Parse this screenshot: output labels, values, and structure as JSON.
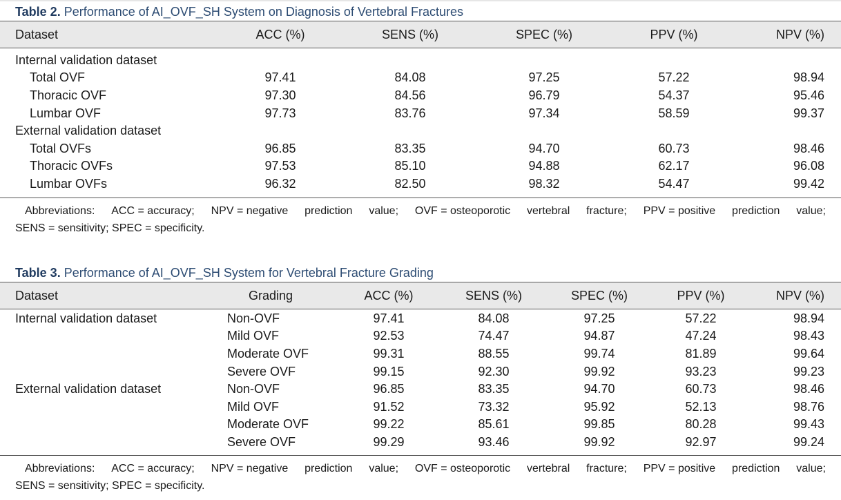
{
  "table2": {
    "label": "Table 2.",
    "title": "Performance of AI_OVF_SH System on Diagnosis of Vertebral Fractures",
    "headers": [
      "Dataset",
      "ACC (%)",
      "SENS (%)",
      "SPEC (%)",
      "PPV (%)",
      "NPV (%)"
    ],
    "rows": [
      {
        "label": "Internal validation dataset",
        "group": true,
        "values": [
          "",
          "",
          "",
          "",
          ""
        ]
      },
      {
        "label": "Total OVF",
        "values": [
          "97.41",
          "84.08",
          "97.25",
          "57.22",
          "98.94"
        ]
      },
      {
        "label": "Thoracic OVF",
        "values": [
          "97.30",
          "84.56",
          "96.79",
          "54.37",
          "95.46"
        ]
      },
      {
        "label": "Lumbar OVF",
        "values": [
          "97.73",
          "83.76",
          "97.34",
          "58.59",
          "99.37"
        ]
      },
      {
        "label": "External validation dataset",
        "group": true,
        "values": [
          "",
          "",
          "",
          "",
          ""
        ]
      },
      {
        "label": "Total OVFs",
        "values": [
          "96.85",
          "83.35",
          "94.70",
          "60.73",
          "98.46"
        ]
      },
      {
        "label": "Thoracic OVFs",
        "values": [
          "97.53",
          "85.10",
          "94.88",
          "62.17",
          "96.08"
        ]
      },
      {
        "label": "Lumbar OVFs",
        "values": [
          "96.32",
          "82.50",
          "98.32",
          "54.47",
          "99.42"
        ]
      }
    ],
    "abbr_words": [
      "Abbreviations:",
      "ACC = accuracy;",
      "NPV = negative",
      "prediction",
      "value;",
      "OVF = osteoporotic",
      "vertebral",
      "fracture;",
      "PPV = positive",
      "prediction",
      "value;"
    ],
    "abbr_line2": "SENS = sensitivity; SPEC = specificity."
  },
  "table3": {
    "label": "Table 3.",
    "title": "Performance of AI_OVF_SH System for Vertebral Fracture Grading",
    "headers": [
      "Dataset",
      "Grading",
      "ACC (%)",
      "SENS (%)",
      "SPEC (%)",
      "PPV (%)",
      "NPV (%)"
    ],
    "rows": [
      {
        "dataset": "Internal validation dataset",
        "grading": "Non-OVF",
        "values": [
          "97.41",
          "84.08",
          "97.25",
          "57.22",
          "98.94"
        ]
      },
      {
        "dataset": "",
        "grading": "Mild OVF",
        "values": [
          "92.53",
          "74.47",
          "94.87",
          "47.24",
          "98.43"
        ]
      },
      {
        "dataset": "",
        "grading": "Moderate OVF",
        "values": [
          "99.31",
          "88.55",
          "99.74",
          "81.89",
          "99.64"
        ]
      },
      {
        "dataset": "",
        "grading": "Severe OVF",
        "values": [
          "99.15",
          "92.30",
          "99.92",
          "93.23",
          "99.23"
        ]
      },
      {
        "dataset": "External validation dataset",
        "grading": "Non-OVF",
        "values": [
          "96.85",
          "83.35",
          "94.70",
          "60.73",
          "98.46"
        ]
      },
      {
        "dataset": "",
        "grading": "Mild OVF",
        "values": [
          "91.52",
          "73.32",
          "95.92",
          "52.13",
          "98.76"
        ]
      },
      {
        "dataset": "",
        "grading": "Moderate OVF",
        "values": [
          "99.22",
          "85.61",
          "99.85",
          "80.28",
          "99.43"
        ]
      },
      {
        "dataset": "",
        "grading": "Severe OVF",
        "values": [
          "99.29",
          "93.46",
          "99.92",
          "92.97",
          "99.24"
        ]
      }
    ],
    "abbr_words": [
      "Abbreviations:",
      "ACC = accuracy;",
      "NPV = negative",
      "prediction",
      "value;",
      "OVF = osteoporotic",
      "vertebral",
      "fracture;",
      "PPV = positive",
      "prediction",
      "value;"
    ],
    "abbr_line2": "SENS = sensitivity; SPEC = specificity."
  }
}
